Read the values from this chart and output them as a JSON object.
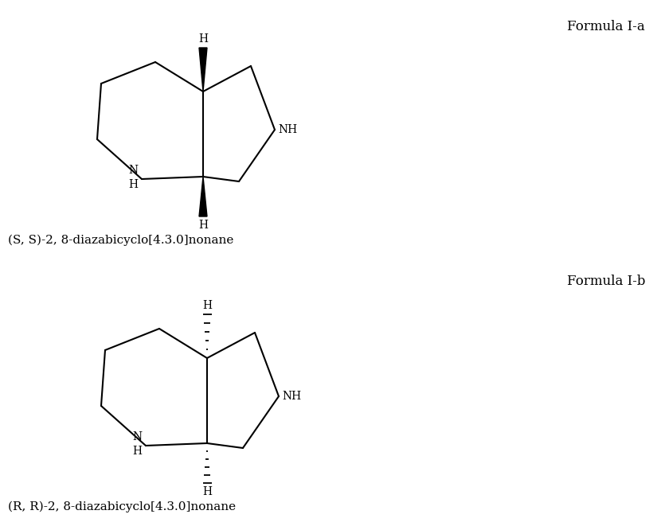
{
  "bg_color": "#ffffff",
  "line_color": "#000000",
  "formula_Ia_label": "Formula I-a",
  "formula_Ib_label": "Formula I-b",
  "name_top": "(S, S)-2, 8-diazabicyclo[4.3.0]nonane",
  "name_bot": "(R, R)-2, 8-diazabicyclo[4.3.0]nonane",
  "font_size_formula": 12,
  "font_size_name": 11,
  "font_size_atom": 10,
  "line_width": 1.5
}
